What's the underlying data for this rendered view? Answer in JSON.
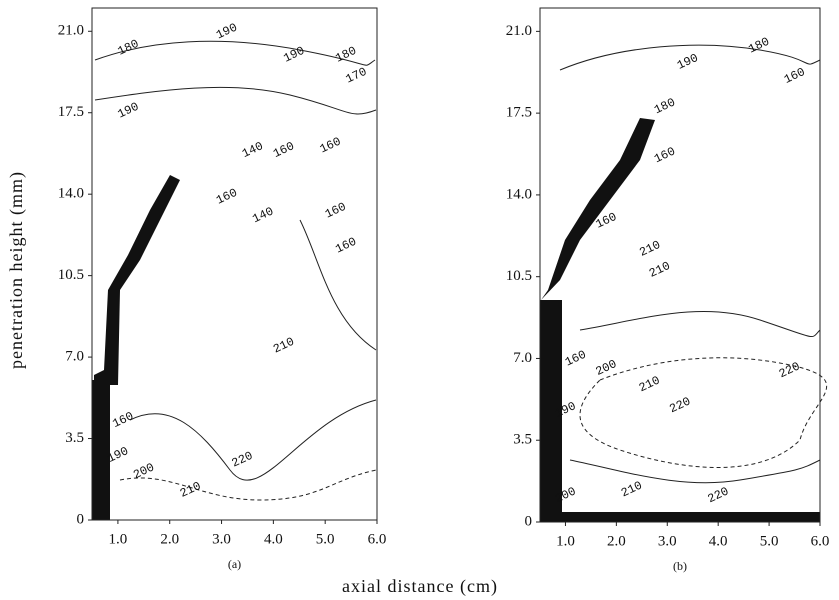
{
  "x_label": "axial distance (cm)",
  "y_label": "penetration height (mm)",
  "chart_data": [
    {
      "type": "contour",
      "caption": "(a)",
      "xlim": [
        0.5,
        6.0
      ],
      "ylim": [
        0,
        22
      ],
      "xticks": [
        {
          "value": 1,
          "label": "1.0"
        },
        {
          "value": 2,
          "label": "2.0"
        },
        {
          "value": 3,
          "label": "3.0"
        },
        {
          "value": 4,
          "label": "4.0"
        },
        {
          "value": 5,
          "label": "5.0"
        },
        {
          "value": 6,
          "label": "6.0"
        }
      ],
      "yticks": [
        0,
        3.5,
        {
          "value": 7,
          "label": "7.0"
        },
        10.5,
        {
          "value": 14,
          "label": "14.0"
        },
        17.5,
        {
          "value": 21,
          "label": "21.0"
        }
      ],
      "contours": [
        {
          "x": 1.2,
          "y": 20.3,
          "level": 180
        },
        {
          "x": 3.1,
          "y": 21.0,
          "level": 190
        },
        {
          "x": 1.2,
          "y": 17.6,
          "level": 190
        },
        {
          "x": 4.4,
          "y": 20.0,
          "level": 190
        },
        {
          "x": 5.4,
          "y": 20.0,
          "level": 180
        },
        {
          "x": 5.6,
          "y": 19.1,
          "level": 170
        },
        {
          "x": 5.1,
          "y": 16.1,
          "level": 160
        },
        {
          "x": 4.2,
          "y": 15.9,
          "level": 160
        },
        {
          "x": 3.6,
          "y": 15.9,
          "level": 140
        },
        {
          "x": 3.1,
          "y": 13.9,
          "level": 160
        },
        {
          "x": 3.8,
          "y": 13.1,
          "level": 140
        },
        {
          "x": 5.2,
          "y": 13.3,
          "level": 160
        },
        {
          "x": 5.4,
          "y": 11.8,
          "level": 160
        },
        {
          "x": 1.1,
          "y": 4.3,
          "level": 160
        },
        {
          "x": 1.0,
          "y": 2.8,
          "level": 190
        },
        {
          "x": 1.5,
          "y": 2.1,
          "level": 200
        },
        {
          "x": 2.4,
          "y": 1.3,
          "level": 210
        },
        {
          "x": 3.4,
          "y": 2.6,
          "level": 220
        },
        {
          "x": 4.2,
          "y": 7.5,
          "level": 210
        }
      ]
    },
    {
      "type": "contour",
      "caption": "(b)",
      "xlim": [
        0.5,
        6.0
      ],
      "ylim": [
        0,
        22
      ],
      "xticks": [
        {
          "value": 1,
          "label": "1.0"
        },
        {
          "value": 2,
          "label": "2.0"
        },
        {
          "value": 3,
          "label": "3.0"
        },
        {
          "value": 4,
          "label": "4.0"
        },
        {
          "value": 5,
          "label": "5.0"
        },
        {
          "value": 6,
          "label": "6.0"
        }
      ],
      "yticks": [
        0,
        3.5,
        {
          "value": 7,
          "label": "7.0"
        },
        10.5,
        {
          "value": 14,
          "label": "14.0"
        },
        17.5,
        {
          "value": 21,
          "label": "21.0"
        }
      ],
      "contours": [
        {
          "x": 4.8,
          "y": 20.4,
          "level": 180
        },
        {
          "x": 3.4,
          "y": 19.7,
          "level": 190
        },
        {
          "x": 5.5,
          "y": 19.1,
          "level": 160
        },
        {
          "x": 2.95,
          "y": 17.8,
          "level": 180
        },
        {
          "x": 2.95,
          "y": 15.7,
          "level": 160
        },
        {
          "x": 1.8,
          "y": 12.9,
          "level": 160
        },
        {
          "x": 2.66,
          "y": 11.7,
          "level": 210
        },
        {
          "x": 2.85,
          "y": 10.8,
          "level": 210
        },
        {
          "x": 1.2,
          "y": 7.0,
          "level": 160
        },
        {
          "x": 1.8,
          "y": 6.6,
          "level": 200
        },
        {
          "x": 2.65,
          "y": 5.9,
          "level": 210
        },
        {
          "x": 3.25,
          "y": 5.0,
          "level": 220
        },
        {
          "x": 5.4,
          "y": 6.5,
          "level": 220
        },
        {
          "x": 1.0,
          "y": 4.8,
          "level": 190
        },
        {
          "x": 1.0,
          "y": 1.15,
          "level": 200
        },
        {
          "x": 2.3,
          "y": 1.4,
          "level": 210
        },
        {
          "x": 4.0,
          "y": 1.15,
          "level": 220
        }
      ]
    }
  ]
}
